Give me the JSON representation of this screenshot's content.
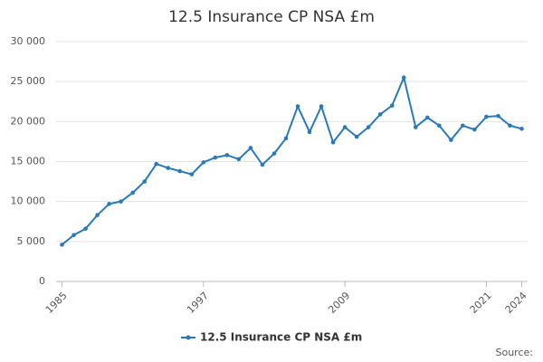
{
  "chart_data": {
    "type": "line",
    "title": "12.5 Insurance CP NSA £m",
    "x": [
      1985,
      1986,
      1987,
      1988,
      1989,
      1990,
      1991,
      1992,
      1993,
      1994,
      1995,
      1996,
      1997,
      1998,
      1999,
      2000,
      2001,
      2002,
      2003,
      2004,
      2005,
      2006,
      2007,
      2008,
      2009,
      2010,
      2011,
      2012,
      2013,
      2014,
      2015,
      2016,
      2017,
      2018,
      2019,
      2020,
      2021,
      2022,
      2023,
      2024
    ],
    "series": [
      {
        "name": "12.5 Insurance CP NSA £m",
        "color": "#2a7ab8",
        "values": [
          4600,
          5800,
          6600,
          8300,
          9700,
          10000,
          11100,
          12500,
          14700,
          14200,
          13800,
          13400,
          14900,
          15500,
          15800,
          15300,
          16700,
          14600,
          16000,
          17900,
          21900,
          18700,
          21900,
          17400,
          19300,
          18100,
          19300,
          20900,
          22000,
          25500,
          19300,
          20500,
          19500,
          17700,
          19500,
          19000,
          20600,
          20700,
          19500,
          19100
        ]
      }
    ],
    "xlim": [
      1984.5,
      2024.5
    ],
    "xticks": [
      1985,
      1997,
      2009,
      2021,
      2024
    ],
    "ylim": [
      0,
      30000
    ],
    "yticks": [
      0,
      {
        "value": 5000,
        "label": "5 000"
      },
      {
        "value": 10000,
        "label": "10 000"
      },
      {
        "value": 15000,
        "label": "15 000"
      },
      {
        "value": 20000,
        "label": "20 000"
      },
      {
        "value": 25000,
        "label": "25 000"
      },
      {
        "value": 30000,
        "label": "30 000"
      }
    ],
    "grid": true,
    "legend": "bottom",
    "source": "Source:"
  }
}
